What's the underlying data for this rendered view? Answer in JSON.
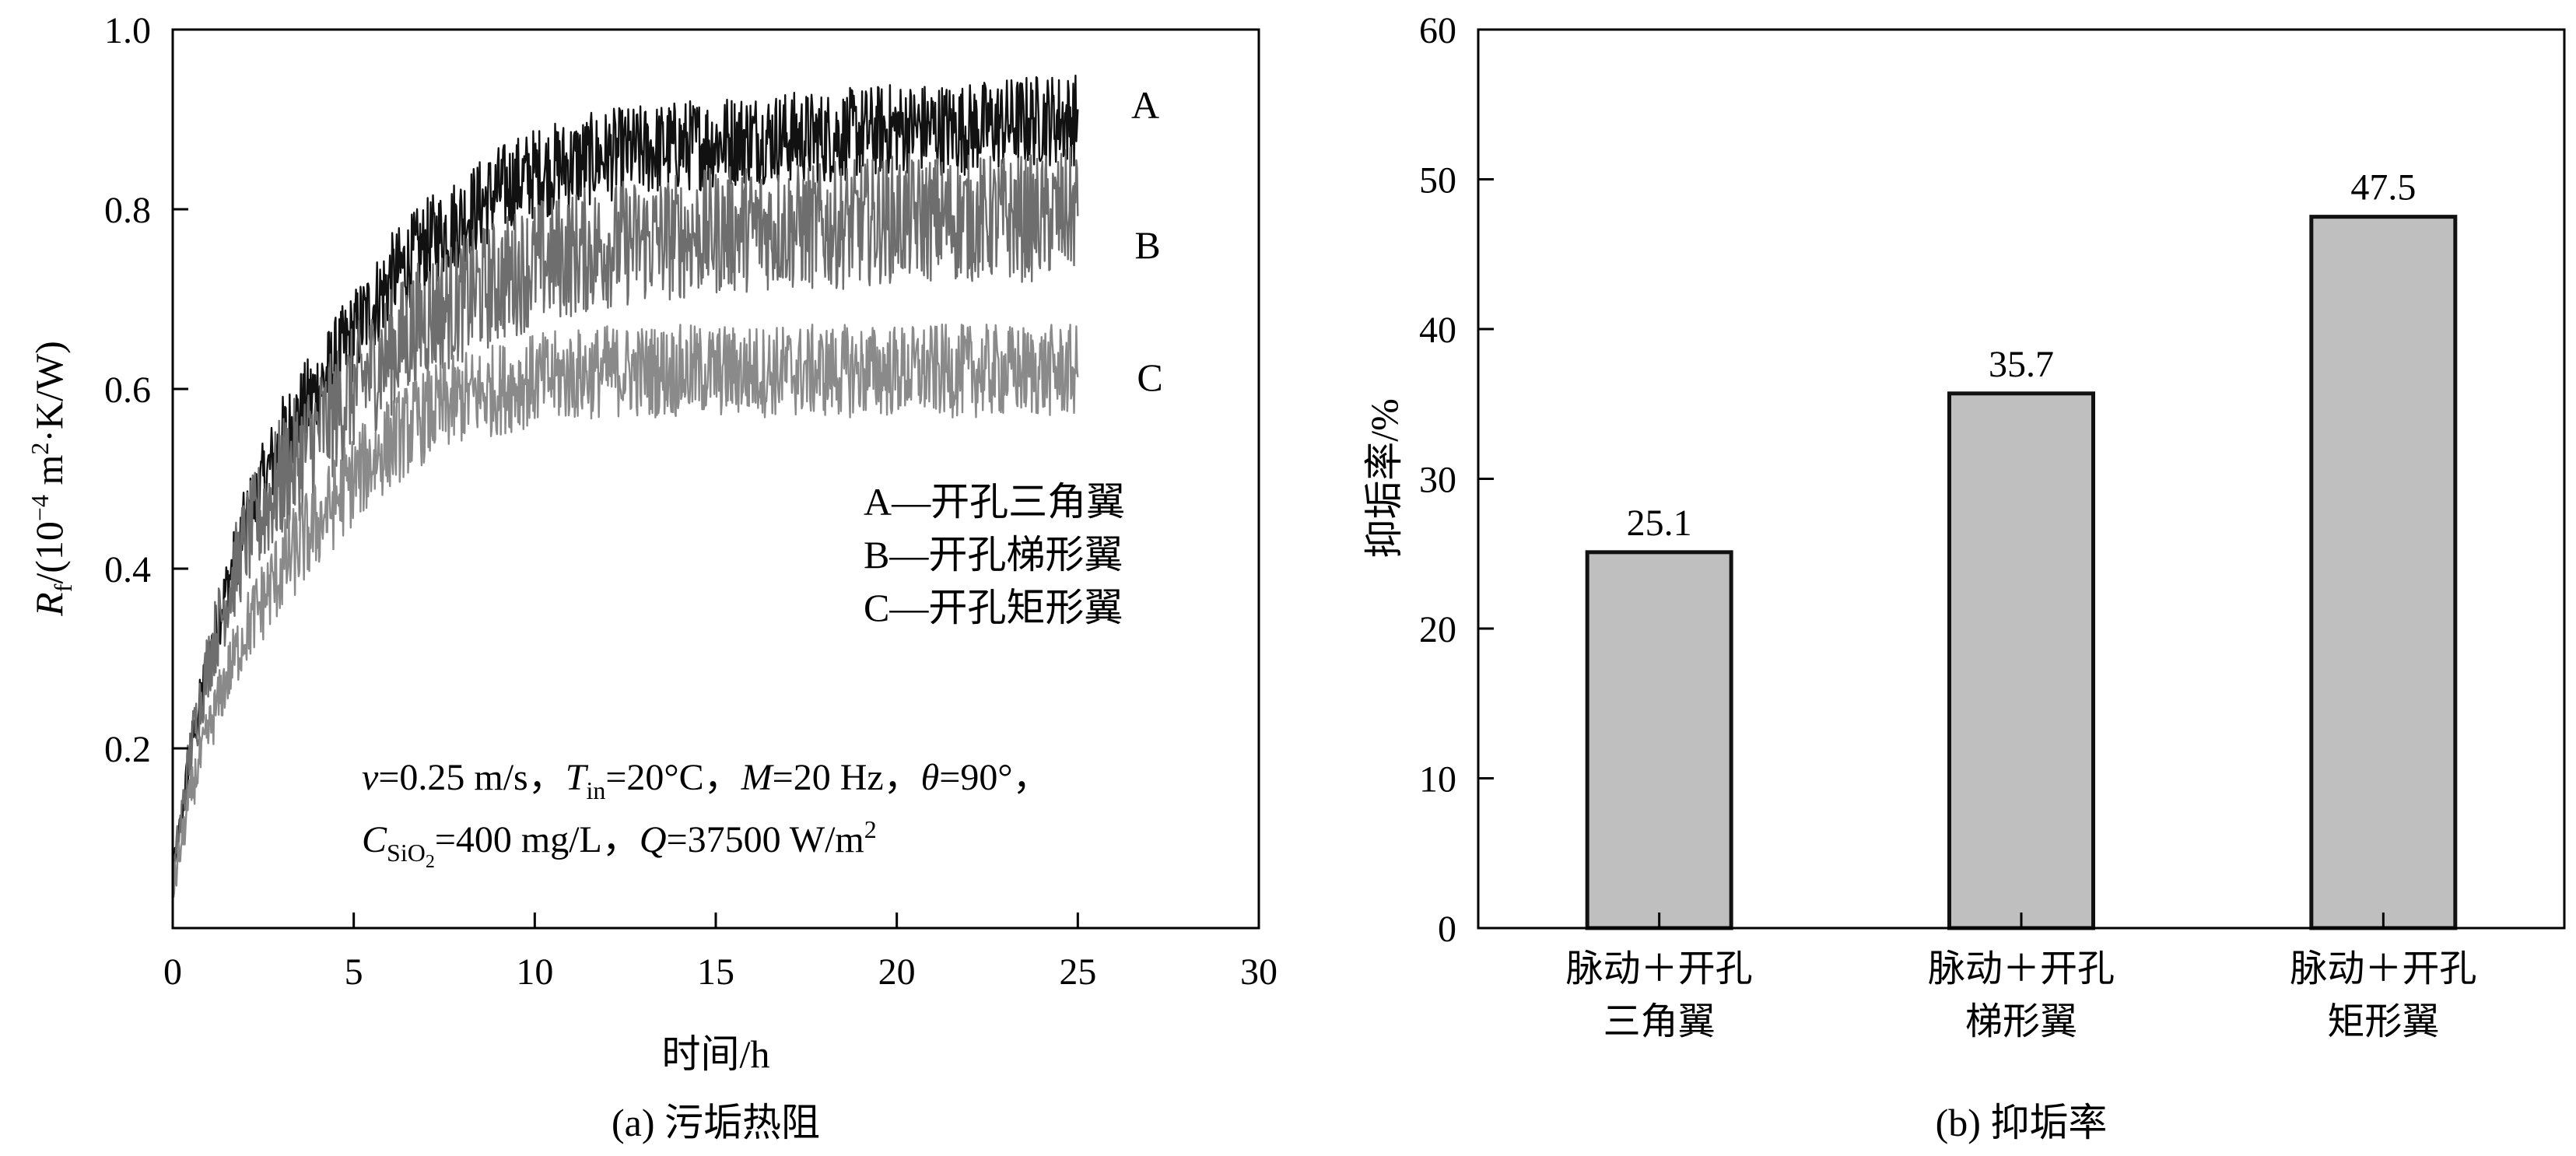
{
  "chart_data": [
    {
      "type": "line",
      "caption": "(a) 污垢热阻",
      "xlabel": "时间/h",
      "ylabel_symbol": "R",
      "ylabel_sub": "f",
      "ylabel_unit": "/(10",
      "ylabel_exp": "−4",
      "ylabel_unit2": " m",
      "ylabel_exp2": "2",
      "ylabel_unit3": "·K/W)",
      "xlim": [
        0,
        30
      ],
      "ylim": [
        0,
        1.0
      ],
      "xticks": [
        "0",
        "5",
        "10",
        "15",
        "20",
        "25",
        "30"
      ],
      "yticks": [
        "0.2",
        "0.4",
        "0.6",
        "0.8",
        "1.0"
      ],
      "grid": false,
      "series": [
        {
          "name": "A",
          "legend": "A—开孔三角翼",
          "color": "#111111",
          "x": [
            0,
            0.5,
            1,
            1.5,
            2,
            3,
            4,
            5,
            6,
            7,
            8,
            9,
            10,
            12,
            14,
            16,
            18,
            20,
            22,
            24,
            25
          ],
          "y": [
            0.05,
            0.2,
            0.3,
            0.38,
            0.45,
            0.54,
            0.6,
            0.66,
            0.72,
            0.76,
            0.79,
            0.82,
            0.84,
            0.86,
            0.87,
            0.88,
            0.88,
            0.89,
            0.89,
            0.9,
            0.9
          ],
          "noise": 0.04
        },
        {
          "name": "B",
          "legend": "B—开孔梯形翼",
          "color": "#6e6e6e",
          "x": [
            0,
            0.5,
            1,
            1.5,
            2,
            3,
            4,
            5,
            6,
            7,
            8,
            9,
            10,
            12,
            14,
            16,
            18,
            20,
            22,
            24,
            25
          ],
          "y": [
            0.05,
            0.2,
            0.3,
            0.37,
            0.43,
            0.5,
            0.55,
            0.6,
            0.64,
            0.68,
            0.7,
            0.72,
            0.74,
            0.76,
            0.77,
            0.78,
            0.78,
            0.79,
            0.79,
            0.79,
            0.8
          ],
          "noise": 0.055
        },
        {
          "name": "C",
          "legend": "C—开孔矩形翼",
          "color": "#8a8a8a",
          "x": [
            0,
            0.5,
            1,
            1.5,
            2,
            3,
            4,
            5,
            6,
            7,
            8,
            9,
            10,
            12,
            14,
            16,
            18,
            20,
            22,
            24,
            25
          ],
          "y": [
            0.04,
            0.15,
            0.22,
            0.28,
            0.33,
            0.4,
            0.45,
            0.5,
            0.54,
            0.57,
            0.59,
            0.6,
            0.61,
            0.62,
            0.62,
            0.62,
            0.62,
            0.62,
            0.62,
            0.62,
            0.62
          ],
          "noise": 0.04
        }
      ],
      "condition_line1": {
        "v": "v",
        "v_val": "=0.25 m/s，",
        "T": "T",
        "T_sub": "in",
        "T_val": "=20°C，",
        "M": "M",
        "M_val": "=20 Hz，",
        "theta": "θ",
        "theta_val": "=90°，"
      },
      "condition_line2": {
        "C": "C",
        "C_sub": "SiO",
        "C_sub2": "2",
        "C_val": "=400 mg/L，",
        "Q": "Q",
        "Q_val": "=37500 W/m",
        "Q_exp": "2"
      }
    },
    {
      "type": "bar",
      "caption": "(b) 抑垢率",
      "ylabel": "抑垢率/%",
      "ylim": [
        0,
        60
      ],
      "yticks": [
        "0",
        "10",
        "20",
        "30",
        "40",
        "50",
        "60"
      ],
      "categories": [
        {
          "line1": "脉动＋开孔",
          "line2": "三角翼"
        },
        {
          "line1": "脉动＋开孔",
          "line2": "梯形翼"
        },
        {
          "line1": "脉动＋开孔",
          "line2": "矩形翼"
        }
      ],
      "values": [
        25.1,
        35.7,
        47.5
      ],
      "value_labels": [
        "25.1",
        "35.7",
        "47.5"
      ],
      "bar_color": "#bfbfbf",
      "bar_edge": "#111111",
      "grid": false
    }
  ]
}
